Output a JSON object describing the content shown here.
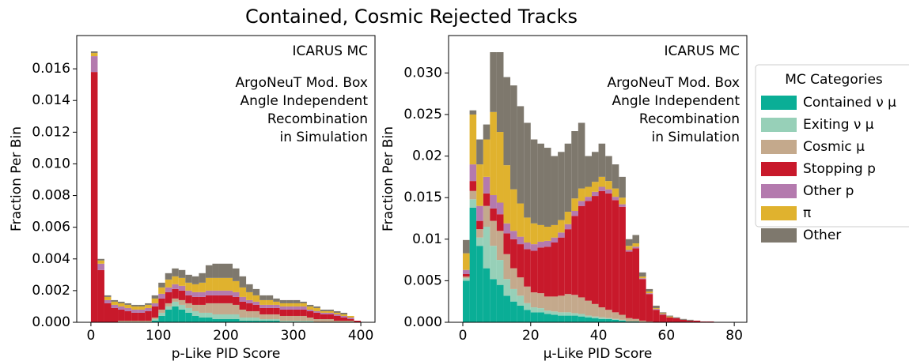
{
  "title": "Contained, Cosmic Rejected Tracks",
  "legend_title": "MC Categories",
  "chart_data": [
    {
      "type": "stacked_histogram",
      "xlabel": "p-Like PID Score",
      "ylabel": "Fraction Per Bin",
      "annotations": [
        "ICARUS MC",
        "ArgoNeuT Mod. Box",
        "Angle Independent",
        "Recombination",
        "in Simulation"
      ],
      "xlim": [
        -21,
        421
      ],
      "ylim": [
        0,
        0.0181
      ],
      "xticks": [
        0,
        100,
        200,
        300,
        400
      ],
      "yticks": [
        {
          "value": 0,
          "label": "0.000"
        },
        {
          "value": 0.002,
          "label": "0.002"
        },
        {
          "value": 0.004,
          "label": "0.004"
        },
        {
          "value": 0.006,
          "label": "0.006"
        },
        {
          "value": 0.008,
          "label": "0.008"
        },
        {
          "value": 0.01,
          "label": "0.010"
        },
        {
          "value": 0.012,
          "label": "0.012"
        },
        {
          "value": 0.014,
          "label": "0.014"
        },
        {
          "value": 0.016,
          "label": "0.016"
        }
      ],
      "bins": [
        0,
        10,
        20,
        30,
        40,
        50,
        60,
        70,
        80,
        90,
        100,
        110,
        120,
        130,
        140,
        150,
        160,
        170,
        180,
        190,
        200,
        210,
        220,
        230,
        240,
        250,
        260,
        270,
        280,
        290,
        300,
        310,
        320,
        330,
        340,
        350,
        360,
        370,
        380,
        390,
        400
      ],
      "series": [
        {
          "name": "Contained ν μ",
          "color": "#0aae96",
          "values": [
            0,
            0,
            0,
            0,
            0,
            0,
            0,
            0,
            0,
            0.0001,
            0.0004,
            0.0008,
            0.001,
            0.0008,
            0.0006,
            0.0004,
            0.0003,
            0.0003,
            0.0002,
            0.0002,
            0.0002,
            0.0002,
            0.0001,
            0.0001,
            0.0001,
            0.0001,
            0.0001,
            0.0001,
            0,
            0,
            0,
            0,
            0,
            0,
            0,
            0,
            0,
            0,
            0,
            0
          ]
        },
        {
          "name": "Exiting ν μ",
          "color": "#97d0b8",
          "values": [
            0,
            0,
            0,
            0,
            0,
            0,
            0,
            0,
            0,
            0.0001,
            0.0002,
            0.0002,
            0.0003,
            0.0003,
            0.0003,
            0.0003,
            0.0003,
            0.0003,
            0.0003,
            0.0003,
            0.0003,
            0.0003,
            0.0002,
            0.0002,
            0.0002,
            0.0001,
            0.0001,
            0.0001,
            0.0001,
            0.0001,
            0.0001,
            0.0001,
            0.0001,
            0,
            0,
            0,
            0,
            0,
            0,
            0
          ]
        },
        {
          "name": "Cosmic μ",
          "color": "#c4a98c",
          "values": [
            0,
            0,
            0,
            0,
            0.0001,
            0.0001,
            0.0001,
            0.0001,
            0.0001,
            0.0001,
            0.0002,
            0.0002,
            0.0002,
            0.0003,
            0.0003,
            0.0004,
            0.0005,
            0.0006,
            0.0007,
            0.0007,
            0.0007,
            0.0006,
            0.0005,
            0.0004,
            0.0004,
            0.0003,
            0.0003,
            0.0003,
            0.0003,
            0.0003,
            0.0003,
            0.0003,
            0.0002,
            0.0002,
            0.0002,
            0.0002,
            0.0001,
            0.0001,
            0.0001,
            0
          ]
        },
        {
          "name": "Stopping p",
          "color": "#c8192b",
          "values": [
            0.0158,
            0.0033,
            0.0012,
            0.0009,
            0.0007,
            0.0006,
            0.0005,
            0.0005,
            0.0006,
            0.0007,
            0.0007,
            0.0007,
            0.0006,
            0.0006,
            0.0005,
            0.0005,
            0.0005,
            0.0005,
            0.0005,
            0.0005,
            0.0005,
            0.0005,
            0.0005,
            0.0005,
            0.0004,
            0.0004,
            0.0004,
            0.0004,
            0.0004,
            0.0004,
            0.0004,
            0.0004,
            0.0004,
            0.0004,
            0.0003,
            0.0003,
            0.0003,
            0.0002,
            0.0001,
            0.0001
          ]
        },
        {
          "name": "Other p",
          "color": "#b47aae",
          "values": [
            0.001,
            0.0004,
            0.0002,
            0.0002,
            0.0002,
            0.0002,
            0.0002,
            0.0002,
            0.0002,
            0.0002,
            0.0003,
            0.0003,
            0.0003,
            0.0003,
            0.0003,
            0.0003,
            0.0003,
            0.0003,
            0.0003,
            0.0003,
            0.0003,
            0.0003,
            0.0003,
            0.0002,
            0.0002,
            0.0002,
            0.0002,
            0.0002,
            0.0002,
            0.0002,
            0.0002,
            0.0002,
            0.0001,
            0.0001,
            0.0001,
            0.0001,
            0.0001,
            0.0001,
            0.0001,
            0
          ]
        },
        {
          "name": "π",
          "color": "#e0b22e",
          "values": [
            0.0002,
            0.0002,
            0.0002,
            0.0002,
            0.0002,
            0.0002,
            0.0002,
            0.0002,
            0.0002,
            0.0003,
            0.0004,
            0.0005,
            0.0005,
            0.0005,
            0.0005,
            0.0005,
            0.0006,
            0.0008,
            0.0008,
            0.0008,
            0.0008,
            0.0007,
            0.0006,
            0.0005,
            0.0004,
            0.0003,
            0.0003,
            0.0002,
            0.0002,
            0.0002,
            0.0002,
            0.0002,
            0.0002,
            0.0002,
            0.0001,
            0.0001,
            0.0001,
            0.0001,
            0.0001,
            0
          ]
        },
        {
          "name": "Other",
          "color": "#7e786d",
          "values": [
            0.0001,
            0.0001,
            0.0001,
            0.0001,
            0.0001,
            0.0001,
            0.0001,
            0.0001,
            0.0001,
            0.0002,
            0.0003,
            0.0004,
            0.0005,
            0.0005,
            0.0005,
            0.0005,
            0.0006,
            0.0008,
            0.0009,
            0.0009,
            0.0009,
            0.0008,
            0.0007,
            0.0005,
            0.0004,
            0.0003,
            0.0003,
            0.0002,
            0.0002,
            0.0002,
            0.0002,
            0.0001,
            0.0001,
            0.0001,
            0.0001,
            0.0001,
            0.0001,
            0.0001,
            0,
            0
          ]
        }
      ]
    },
    {
      "type": "stacked_histogram",
      "xlabel": "μ-Like PID Score",
      "ylabel": "Fraction Per Bin",
      "annotations": [
        "ICARUS MC",
        "ArgoNeuT Mod. Box",
        "Angle Independent",
        "Recombination",
        "in Simulation"
      ],
      "xlim": [
        -4.2,
        83.7
      ],
      "ylim": [
        0,
        0.0345
      ],
      "xticks": [
        0,
        20,
        40,
        60,
        80
      ],
      "yticks": [
        {
          "value": 0,
          "label": "0.000"
        },
        0.005,
        0.01,
        0.015,
        0.02,
        0.025,
        {
          "value": 0.03,
          "label": "0.030"
        }
      ],
      "bins": [
        0,
        2,
        4,
        6,
        8,
        10,
        12,
        14,
        16,
        18,
        20,
        22,
        24,
        26,
        28,
        30,
        32,
        34,
        36,
        38,
        40,
        42,
        44,
        46,
        48,
        50,
        52,
        54,
        56,
        58,
        60,
        62,
        64,
        66,
        68,
        70,
        72,
        74,
        76,
        78,
        80
      ],
      "series": [
        {
          "name": "Contained ν μ",
          "color": "#0aae96",
          "values": [
            0.005,
            0.0138,
            0.0092,
            0.0065,
            0.0052,
            0.0045,
            0.0032,
            0.0025,
            0.002,
            0.0015,
            0.0012,
            0.0012,
            0.001,
            0.0009,
            0.0008,
            0.0008,
            0.0008,
            0.0007,
            0.0006,
            0.0005,
            0.0004,
            0.0004,
            0.0003,
            0.0002,
            0.0001,
            0.0001,
            0,
            0,
            0,
            0,
            0,
            0,
            0,
            0,
            0,
            0,
            0,
            0,
            0,
            0
          ]
        },
        {
          "name": "Exiting ν μ",
          "color": "#97d0b8",
          "values": [
            0.0003,
            0.001,
            0.001,
            0.005,
            0.004,
            0.003,
            0.002,
            0.0015,
            0.0012,
            0.0008,
            0.0006,
            0.0005,
            0.0004,
            0.0004,
            0.0004,
            0.0004,
            0.0003,
            0.0003,
            0.0002,
            0.0002,
            0.0002,
            0.0001,
            0.0001,
            0.0001,
            0,
            0,
            0,
            0,
            0,
            0,
            0,
            0,
            0,
            0,
            0,
            0,
            0,
            0,
            0,
            0
          ]
        },
        {
          "name": "Cosmic μ",
          "color": "#c4a98c",
          "values": [
            0.0002,
            0.001,
            0.001,
            0.0025,
            0.003,
            0.0035,
            0.003,
            0.0025,
            0.0022,
            0.002,
            0.0018,
            0.0018,
            0.0017,
            0.0018,
            0.002,
            0.0022,
            0.0022,
            0.002,
            0.0018,
            0.0015,
            0.0012,
            0.001,
            0.0008,
            0.0006,
            0.0004,
            0.0003,
            0.0002,
            0.0001,
            0,
            0,
            0,
            0,
            0,
            0,
            0,
            0,
            0,
            0,
            0,
            0
          ]
        },
        {
          "name": "Stopping p",
          "color": "#c8192b",
          "values": [
            0.0003,
            0.0012,
            0.001,
            0.0015,
            0.0015,
            0.002,
            0.0025,
            0.0035,
            0.004,
            0.0045,
            0.005,
            0.0055,
            0.006,
            0.0065,
            0.007,
            0.0078,
            0.0095,
            0.011,
            0.012,
            0.013,
            0.014,
            0.014,
            0.0135,
            0.013,
            0.008,
            0.0085,
            0.005,
            0.0033,
            0.0015,
            0.0009,
            0.0006,
            0.0005,
            0.0003,
            0.0002,
            0.0002,
            0.0001,
            0.0001,
            0,
            0,
            0
          ]
        },
        {
          "name": "Other p",
          "color": "#b47aae",
          "values": [
            0.0005,
            0.002,
            0.0018,
            0.002,
            0.0016,
            0.0014,
            0.0012,
            0.001,
            0.0009,
            0.0008,
            0.0008,
            0.0007,
            0.0007,
            0.0006,
            0.0006,
            0.0006,
            0.0006,
            0.0006,
            0.0005,
            0.0005,
            0.0005,
            0.0005,
            0.0004,
            0.0003,
            0.0002,
            0.0002,
            0.0001,
            0.0001,
            0.0001,
            0.0001,
            0,
            0,
            0,
            0,
            0,
            0,
            0,
            0,
            0,
            0
          ]
        },
        {
          "name": "π",
          "color": "#e0b22e",
          "values": [
            0.002,
            0.006,
            0.005,
            0.0045,
            0.01,
            0.0085,
            0.007,
            0.005,
            0.004,
            0.003,
            0.0025,
            0.002,
            0.0017,
            0.0015,
            0.0015,
            0.0015,
            0.0015,
            0.0015,
            0.0012,
            0.0012,
            0.0012,
            0.001,
            0.001,
            0.0008,
            0.0005,
            0.0004,
            0.0002,
            0.0002,
            0.0001,
            0.0001,
            0.0001,
            0,
            0,
            0,
            0,
            0,
            0,
            0,
            0,
            0
          ]
        },
        {
          "name": "Other",
          "color": "#7e786d",
          "values": [
            0.0016,
            0.0005,
            0.003,
            0.0018,
            0.0072,
            0.0096,
            0.0106,
            0.0125,
            0.0117,
            0.0114,
            0.0101,
            0.0098,
            0.0095,
            0.0083,
            0.0082,
            0.0082,
            0.0081,
            0.0079,
            0.0037,
            0.0036,
            0.004,
            0.003,
            0.0029,
            0.0025,
            0.0008,
            0.001,
            0.0005,
            0.0003,
            0.0003,
            0.0001,
            0.0001,
            0.0001,
            0.0001,
            0.0001,
            0,
            0,
            0,
            0,
            0,
            0
          ]
        }
      ]
    }
  ]
}
